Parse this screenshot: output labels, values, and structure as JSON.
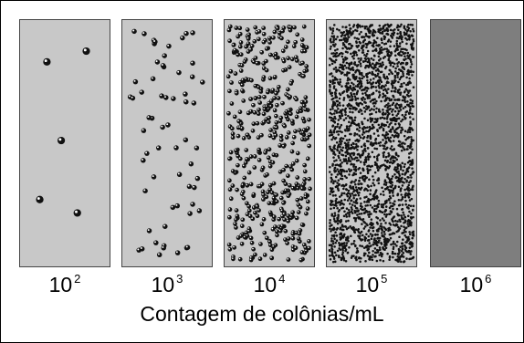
{
  "panels": [
    {
      "base": "10",
      "exponent": "2",
      "density": "sparse"
    },
    {
      "base": "10",
      "exponent": "3",
      "density": "scattered"
    },
    {
      "base": "10",
      "exponent": "4",
      "density": "dense"
    },
    {
      "base": "10",
      "exponent": "5",
      "density": "very-dense"
    },
    {
      "base": "10",
      "exponent": "6",
      "density": "confluent"
    }
  ],
  "caption": "Contagem de colônias/mL",
  "colors": {
    "plate": "#c8c8c8",
    "confluent_plate": "#7e7e7e",
    "colony": "#111111"
  }
}
